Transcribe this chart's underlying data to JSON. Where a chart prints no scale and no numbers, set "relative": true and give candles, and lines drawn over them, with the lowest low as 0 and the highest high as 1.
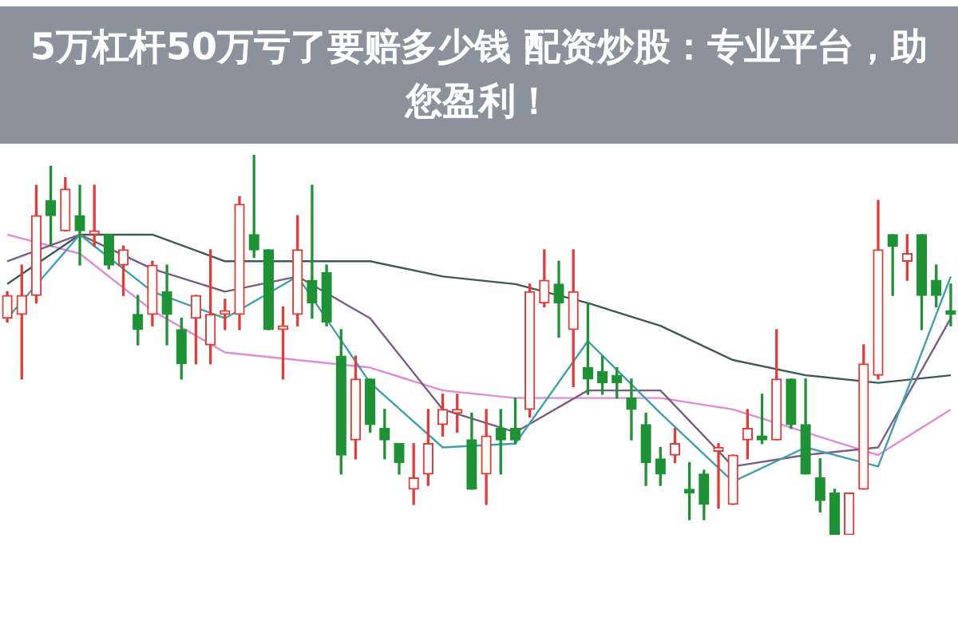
{
  "chart_data": {
    "type": "candlestick",
    "title": "5万杠杆50万亏了要赔多少钱 配资炒股：专业平台，助您盈利！",
    "relative": true,
    "categories": [
      null,
      null,
      null,
      null,
      null,
      null,
      null,
      null,
      null,
      null,
      null,
      null,
      null,
      null,
      null,
      null,
      null,
      null,
      null,
      null,
      null,
      null,
      null,
      null,
      null,
      null,
      null,
      null,
      null,
      null,
      null,
      null,
      null,
      null,
      null,
      null,
      null,
      null,
      null,
      null,
      null,
      null,
      null,
      null,
      null,
      null,
      null,
      null,
      null,
      null,
      null,
      null,
      null,
      null,
      null,
      null,
      null,
      null,
      null,
      null,
      null,
      null,
      null,
      null,
      null,
      null
    ],
    "ohlc": [
      [
        0.57,
        0.64,
        0.56,
        0.63
      ],
      [
        0.58,
        0.71,
        0.41,
        0.63
      ],
      [
        0.63,
        0.92,
        0.61,
        0.84
      ],
      [
        0.88,
        0.97,
        0.76,
        0.84
      ],
      [
        0.8,
        0.94,
        0.8,
        0.91
      ],
      [
        0.84,
        0.92,
        0.71,
        0.8
      ],
      [
        0.79,
        0.92,
        0.76,
        0.8
      ],
      [
        0.79,
        0.79,
        0.7,
        0.71
      ],
      [
        0.71,
        0.76,
        0.63,
        0.75
      ],
      [
        0.58,
        0.63,
        0.5,
        0.54
      ],
      [
        0.58,
        0.72,
        0.55,
        0.71
      ],
      [
        0.64,
        0.71,
        0.5,
        0.58
      ],
      [
        0.54,
        0.57,
        0.41,
        0.45
      ],
      [
        0.57,
        0.63,
        0.45,
        0.63
      ],
      [
        0.5,
        0.75,
        0.45,
        0.58
      ],
      [
        0.58,
        0.62,
        0.54,
        0.59
      ],
      [
        0.58,
        0.89,
        0.54,
        0.87
      ],
      [
        0.79,
        1,
        0.73,
        0.75
      ],
      [
        0.75,
        0.75,
        0.54,
        0.54
      ],
      [
        0.54,
        0.6,
        0.41,
        0.55
      ],
      [
        0.58,
        0.84,
        0.55,
        0.75
      ],
      [
        0.67,
        0.92,
        0.57,
        0.61
      ],
      [
        0.69,
        0.71,
        0.55,
        0.56
      ],
      [
        0.47,
        0.54,
        0.16,
        0.21
      ],
      [
        0.25,
        0.47,
        0.2,
        0.41
      ],
      [
        0.41,
        0.41,
        0.27,
        0.29
      ],
      [
        0.28,
        0.33,
        0.2,
        0.25
      ],
      [
        0.24,
        0.24,
        0.16,
        0.19
      ],
      [
        0.12,
        0.24,
        0.08,
        0.15
      ],
      [
        0.16,
        0.33,
        0.13,
        0.24
      ],
      [
        0.29,
        0.37,
        0.26,
        0.33
      ],
      [
        0.32,
        0.37,
        0.27,
        0.33
      ],
      [
        0.25,
        0.32,
        0.12,
        0.12
      ],
      [
        0.16,
        0.33,
        0.08,
        0.26
      ],
      [
        0.28,
        0.33,
        0.16,
        0.25
      ],
      [
        0.28,
        0.36,
        0.24,
        0.25
      ],
      [
        0.33,
        0.66,
        0.31,
        0.64
      ],
      [
        0.61,
        0.75,
        0.6,
        0.67
      ],
      [
        0.66,
        0.72,
        0.52,
        0.61
      ],
      [
        0.54,
        0.75,
        0.39,
        0.64
      ],
      [
        0.44,
        0.61,
        0.37,
        0.41
      ],
      [
        0.43,
        0.47,
        0.37,
        0.4
      ],
      [
        0.42,
        0.44,
        0.36,
        0.4
      ],
      [
        0.36,
        0.41,
        0.25,
        0.33
      ],
      [
        0.29,
        0.32,
        0.13,
        0.19
      ],
      [
        0.2,
        0.23,
        0.13,
        0.16
      ],
      [
        0.21,
        0.28,
        0.19,
        0.24
      ],
      [
        0.12,
        0.19,
        0.04,
        0.11
      ],
      [
        0.16,
        0.17,
        0.04,
        0.08
      ],
      [
        0.22,
        0.24,
        0.07,
        0.23
      ],
      [
        0.08,
        0.21,
        0.08,
        0.21
      ],
      [
        0.25,
        0.33,
        0.2,
        0.28
      ],
      [
        0.26,
        0.37,
        0.24,
        0.25
      ],
      [
        0.25,
        0.54,
        0.25,
        0.41
      ],
      [
        0.41,
        0.41,
        0.28,
        0.29
      ],
      [
        0.29,
        0.41,
        0.16,
        0.16
      ],
      [
        0.15,
        0.2,
        0.06,
        0.09
      ],
      [
        0.11,
        0.12,
        0,
        0
      ],
      [
        0,
        0.11,
        0,
        0.11
      ],
      [
        0.12,
        0.5,
        0.12,
        0.45
      ],
      [
        0.42,
        0.88,
        0.41,
        0.75
      ],
      [
        0.79,
        0.79,
        0.63,
        0.76
      ],
      [
        0.72,
        0.79,
        0.67,
        0.74
      ],
      [
        0.79,
        0.79,
        0.54,
        0.63
      ],
      [
        0.67,
        0.71,
        0.6,
        0.63
      ],
      [
        0.59,
        0.66,
        0.55,
        0.58
      ]
    ],
    "series": [
      {
        "type": "line",
        "color": "#3f9fae",
        "values": [
          0.57,
          null,
          null,
          null,
          null,
          0.79,
          null,
          null,
          null,
          null,
          0.64,
          null,
          null,
          null,
          null,
          0.57,
          null,
          null,
          null,
          null,
          0.68,
          null,
          null,
          null,
          null,
          0.4,
          null,
          null,
          null,
          null,
          0.23,
          null,
          null,
          null,
          null,
          0.24,
          null,
          null,
          null,
          null,
          0.51,
          null,
          null,
          null,
          null,
          0.32,
          null,
          null,
          null,
          null,
          0.14,
          null,
          null,
          null,
          null,
          0.23,
          null,
          null,
          null,
          null,
          0.18,
          null,
          null,
          null,
          null,
          0.68
        ]
      },
      {
        "type": "line",
        "color": "#7a5c86",
        "values": [
          0.72,
          null,
          null,
          null,
          null,
          0.79,
          null,
          null,
          null,
          null,
          0.7,
          null,
          null,
          null,
          null,
          0.64,
          null,
          null,
          null,
          null,
          0.68,
          null,
          null,
          null,
          null,
          0.57,
          null,
          null,
          null,
          null,
          0.33,
          null,
          null,
          null,
          null,
          0.27,
          null,
          null,
          null,
          null,
          0.38,
          null,
          null,
          null,
          null,
          0.38,
          null,
          null,
          null,
          null,
          0.18,
          null,
          null,
          null,
          null,
          0.21,
          null,
          null,
          null,
          null,
          0.23,
          null,
          null,
          null,
          null,
          0.57
        ]
      },
      {
        "type": "line",
        "color": "#3d5a5a",
        "values": [
          0.66,
          null,
          null,
          null,
          null,
          0.79,
          null,
          null,
          null,
          null,
          0.79,
          null,
          null,
          null,
          null,
          0.72,
          null,
          null,
          null,
          null,
          0.72,
          null,
          null,
          null,
          null,
          0.72,
          null,
          null,
          null,
          null,
          0.68,
          null,
          null,
          null,
          null,
          0.66,
          null,
          null,
          null,
          null,
          0.61,
          null,
          null,
          null,
          null,
          0.55,
          null,
          null,
          null,
          null,
          0.46,
          null,
          null,
          null,
          null,
          0.42,
          null,
          null,
          null,
          null,
          0.4,
          null,
          null,
          null,
          null,
          0.42
        ]
      },
      {
        "type": "line",
        "color": "#e08ad8",
        "values": [
          0.79,
          null,
          null,
          null,
          null,
          0.74,
          null,
          null,
          null,
          null,
          0.59,
          null,
          null,
          null,
          null,
          0.48,
          null,
          null,
          null,
          null,
          0.46,
          null,
          null,
          null,
          null,
          0.44,
          null,
          null,
          null,
          null,
          0.38,
          null,
          null,
          null,
          null,
          0.36,
          null,
          null,
          null,
          null,
          0.36,
          null,
          null,
          null,
          null,
          0.36,
          null,
          null,
          null,
          null,
          0.33,
          null,
          null,
          null,
          null,
          0.27,
          null,
          null,
          null,
          null,
          0.21,
          null,
          null,
          null,
          null,
          0.33
        ]
      }
    ]
  }
}
